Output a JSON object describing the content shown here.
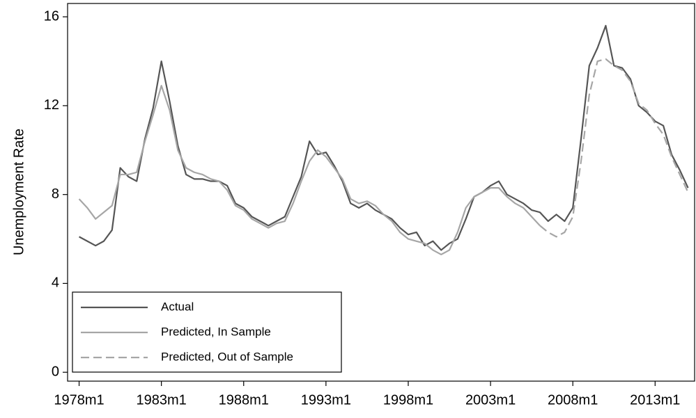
{
  "chart_data": {
    "type": "line",
    "y_label": "Unemployment Rate",
    "x": [
      1978,
      1978.5,
      1979,
      1979.5,
      1980,
      1980.5,
      1981,
      1981.5,
      1982,
      1982.5,
      1983,
      1983.5,
      1984,
      1984.5,
      1985,
      1985.5,
      1986,
      1986.5,
      1987,
      1987.5,
      1988,
      1988.5,
      1989,
      1989.5,
      1990,
      1990.5,
      1991,
      1991.5,
      1992,
      1992.5,
      1993,
      1993.5,
      1994,
      1994.5,
      1995,
      1995.5,
      1996,
      1996.5,
      1997,
      1997.5,
      1998,
      1998.5,
      1999,
      1999.5,
      2000,
      2000.5,
      2001,
      2001.5,
      2002,
      2002.5,
      2003,
      2003.5,
      2004,
      2004.5,
      2005,
      2005.5,
      2006,
      2006.5,
      2007,
      2007.5,
      2008,
      2008.5,
      2009,
      2009.5,
      2010,
      2010.5,
      2011,
      2011.5,
      2012,
      2012.5,
      2013,
      2013.5,
      2014,
      2014.5,
      2015
    ],
    "series": [
      {
        "name": "Actual",
        "color": "#555555",
        "dash": "solid",
        "values": [
          6.1,
          5.9,
          5.7,
          5.9,
          6.4,
          9.2,
          8.8,
          8.6,
          10.5,
          11.9,
          14.0,
          12.2,
          10.2,
          8.9,
          8.7,
          8.7,
          8.6,
          8.6,
          8.4,
          7.6,
          7.4,
          7.0,
          6.8,
          6.6,
          6.8,
          7.0,
          7.9,
          8.8,
          10.4,
          9.8,
          9.9,
          9.3,
          8.6,
          7.6,
          7.4,
          7.6,
          7.3,
          7.1,
          6.9,
          6.5,
          6.2,
          6.3,
          5.7,
          5.9,
          5.5,
          5.8,
          6.0,
          6.9,
          7.9,
          8.1,
          8.4,
          8.6,
          8.0,
          7.8,
          7.6,
          7.3,
          7.2,
          6.8,
          7.1,
          6.8,
          7.4,
          10.5,
          13.8,
          14.6,
          15.6,
          13.8,
          13.7,
          13.2,
          12.0,
          11.7,
          11.3,
          11.1,
          9.8,
          9.1,
          8.3
        ]
      },
      {
        "name": "Predicted, In Sample",
        "color": "#a6a6a6",
        "dash": "solid",
        "values": [
          7.8,
          7.4,
          6.9,
          7.2,
          7.5,
          8.9,
          8.9,
          9.0,
          10.4,
          11.6,
          12.9,
          11.8,
          10.0,
          9.2,
          9.0,
          8.9,
          8.7,
          8.6,
          8.2,
          7.5,
          7.3,
          6.9,
          6.7,
          6.5,
          6.7,
          6.8,
          7.6,
          8.6,
          9.5,
          10.0,
          9.7,
          9.2,
          8.7,
          7.8,
          7.6,
          7.7,
          7.5,
          7.1,
          6.8,
          6.3,
          6.0,
          5.9,
          5.8,
          5.5,
          5.3,
          5.5,
          6.3,
          7.4,
          7.9,
          8.1,
          8.3,
          8.3,
          7.9,
          7.6,
          7.4,
          7.0,
          6.6,
          null,
          null,
          null,
          null,
          null,
          null,
          null,
          null,
          null,
          null,
          null,
          null,
          null,
          null,
          null,
          null,
          null,
          null
        ]
      },
      {
        "name": "Predicted, Out of Sample",
        "color": "#a6a6a6",
        "dash": "dashed",
        "values": [
          null,
          null,
          null,
          null,
          null,
          null,
          null,
          null,
          null,
          null,
          null,
          null,
          null,
          null,
          null,
          null,
          null,
          null,
          null,
          null,
          null,
          null,
          null,
          null,
          null,
          null,
          null,
          null,
          null,
          null,
          null,
          null,
          null,
          null,
          null,
          null,
          null,
          null,
          null,
          null,
          null,
          null,
          null,
          null,
          null,
          null,
          null,
          null,
          null,
          null,
          null,
          null,
          null,
          null,
          null,
          null,
          6.6,
          6.3,
          6.1,
          6.3,
          7.0,
          9.5,
          12.5,
          14.0,
          14.1,
          13.8,
          13.6,
          13.1,
          12.1,
          11.8,
          11.2,
          10.7,
          9.7,
          8.9,
          8.1
        ]
      }
    ],
    "xlim": [
      1977.3,
      2015.4
    ],
    "xticks": [
      {
        "value": 1978,
        "label": "1978m1"
      },
      {
        "value": 1983,
        "label": "1983m1"
      },
      {
        "value": 1988,
        "label": "1988m1"
      },
      {
        "value": 1993,
        "label": "1993m1"
      },
      {
        "value": 1998,
        "label": "1998m1"
      },
      {
        "value": 2003,
        "label": "2003m1"
      },
      {
        "value": 2008,
        "label": "2008m1"
      },
      {
        "value": 2013,
        "label": "2013m1"
      }
    ],
    "ylim": [
      -0.4,
      16.6
    ],
    "yticks": [
      0,
      4,
      8,
      12,
      16
    ],
    "grid": false,
    "legend": "lower left"
  }
}
